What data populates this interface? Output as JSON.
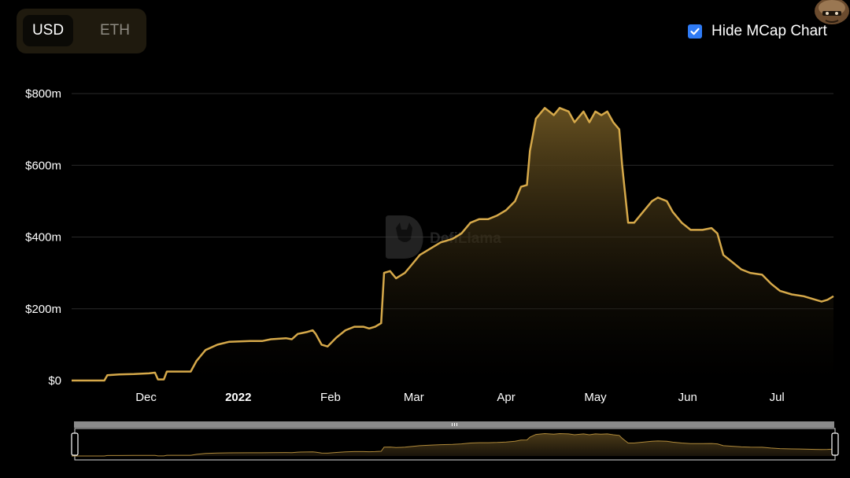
{
  "currency_toggle": {
    "options": [
      "USD",
      "ETH"
    ],
    "selected": "USD"
  },
  "mcap_toggle": {
    "label": "Hide MCap Chart",
    "checked": true
  },
  "watermark": {
    "text": "DefiLlama"
  },
  "colors": {
    "line": "#d6a94a",
    "fill_top": "#6b5422",
    "background": "#000000",
    "grid": "#2a2a2a"
  },
  "chart_data": {
    "type": "area",
    "title": "",
    "xlabel": "",
    "ylabel": "",
    "x_range": [
      "2021-11-06",
      "2022-07-20"
    ],
    "ylim": [
      0,
      800
    ],
    "y_unit": "$ millions",
    "y_ticks": [
      {
        "value": 0,
        "label": "$0"
      },
      {
        "value": 200,
        "label": "$200m"
      },
      {
        "value": 400,
        "label": "$400m"
      },
      {
        "value": 600,
        "label": "$600m"
      },
      {
        "value": 800,
        "label": "$800m"
      }
    ],
    "x_ticks": [
      {
        "date": "2021-12-01",
        "label": "Dec",
        "bold": false
      },
      {
        "date": "2022-01-01",
        "label": "2022",
        "bold": true
      },
      {
        "date": "2022-02-01",
        "label": "Feb",
        "bold": false
      },
      {
        "date": "2022-03-01",
        "label": "Mar",
        "bold": false
      },
      {
        "date": "2022-04-01",
        "label": "Apr",
        "bold": false
      },
      {
        "date": "2022-05-01",
        "label": "May",
        "bold": false
      },
      {
        "date": "2022-06-01",
        "label": "Jun",
        "bold": false
      },
      {
        "date": "2022-07-01",
        "label": "Jul",
        "bold": false
      }
    ],
    "grid": true,
    "series": [
      {
        "points": [
          [
            "2021-11-06",
            0
          ],
          [
            "2021-11-17",
            0
          ],
          [
            "2021-11-18",
            15
          ],
          [
            "2021-11-22",
            17
          ],
          [
            "2021-11-27",
            18
          ],
          [
            "2021-12-02",
            20
          ],
          [
            "2021-12-04",
            22
          ],
          [
            "2021-12-05",
            3
          ],
          [
            "2021-12-07",
            3
          ],
          [
            "2021-12-08",
            25
          ],
          [
            "2021-12-12",
            25
          ],
          [
            "2021-12-16",
            25
          ],
          [
            "2021-12-18",
            55
          ],
          [
            "2021-12-21",
            85
          ],
          [
            "2021-12-25",
            100
          ],
          [
            "2021-12-29",
            108
          ],
          [
            "2022-01-05",
            110
          ],
          [
            "2022-01-09",
            110
          ],
          [
            "2022-01-12",
            115
          ],
          [
            "2022-01-17",
            118
          ],
          [
            "2022-01-19",
            115
          ],
          [
            "2022-01-21",
            130
          ],
          [
            "2022-01-24",
            135
          ],
          [
            "2022-01-26",
            140
          ],
          [
            "2022-01-27",
            130
          ],
          [
            "2022-01-29",
            100
          ],
          [
            "2022-01-31",
            95
          ],
          [
            "2022-02-03",
            120
          ],
          [
            "2022-02-06",
            140
          ],
          [
            "2022-02-09",
            150
          ],
          [
            "2022-02-12",
            150
          ],
          [
            "2022-02-14",
            145
          ],
          [
            "2022-02-16",
            150
          ],
          [
            "2022-02-18",
            160
          ],
          [
            "2022-02-19",
            300
          ],
          [
            "2022-02-21",
            305
          ],
          [
            "2022-02-23",
            285
          ],
          [
            "2022-02-26",
            300
          ],
          [
            "2022-02-28",
            320
          ],
          [
            "2022-03-03",
            350
          ],
          [
            "2022-03-07",
            370
          ],
          [
            "2022-03-10",
            385
          ],
          [
            "2022-03-14",
            395
          ],
          [
            "2022-03-17",
            410
          ],
          [
            "2022-03-20",
            440
          ],
          [
            "2022-03-23",
            450
          ],
          [
            "2022-03-26",
            450
          ],
          [
            "2022-03-29",
            460
          ],
          [
            "2022-04-01",
            475
          ],
          [
            "2022-04-04",
            500
          ],
          [
            "2022-04-06",
            540
          ],
          [
            "2022-04-08",
            545
          ],
          [
            "2022-04-09",
            640
          ],
          [
            "2022-04-11",
            730
          ],
          [
            "2022-04-14",
            760
          ],
          [
            "2022-04-17",
            740
          ],
          [
            "2022-04-19",
            760
          ],
          [
            "2022-04-22",
            750
          ],
          [
            "2022-04-24",
            720
          ],
          [
            "2022-04-27",
            750
          ],
          [
            "2022-04-29",
            720
          ],
          [
            "2022-05-01",
            750
          ],
          [
            "2022-05-03",
            740
          ],
          [
            "2022-05-05",
            750
          ],
          [
            "2022-05-07",
            720
          ],
          [
            "2022-05-09",
            700
          ],
          [
            "2022-05-10",
            600
          ],
          [
            "2022-05-12",
            440
          ],
          [
            "2022-05-14",
            440
          ],
          [
            "2022-05-17",
            470
          ],
          [
            "2022-05-20",
            500
          ],
          [
            "2022-05-22",
            510
          ],
          [
            "2022-05-25",
            500
          ],
          [
            "2022-05-27",
            470
          ],
          [
            "2022-05-30",
            440
          ],
          [
            "2022-06-02",
            420
          ],
          [
            "2022-06-06",
            420
          ],
          [
            "2022-06-09",
            425
          ],
          [
            "2022-06-11",
            410
          ],
          [
            "2022-06-13",
            350
          ],
          [
            "2022-06-16",
            330
          ],
          [
            "2022-06-19",
            310
          ],
          [
            "2022-06-22",
            300
          ],
          [
            "2022-06-26",
            295
          ],
          [
            "2022-06-29",
            270
          ],
          [
            "2022-07-02",
            250
          ],
          [
            "2022-07-06",
            240
          ],
          [
            "2022-07-10",
            235
          ],
          [
            "2022-07-14",
            225
          ],
          [
            "2022-07-16",
            220
          ],
          [
            "2022-07-18",
            225
          ],
          [
            "2022-07-20",
            235
          ]
        ]
      }
    ]
  }
}
